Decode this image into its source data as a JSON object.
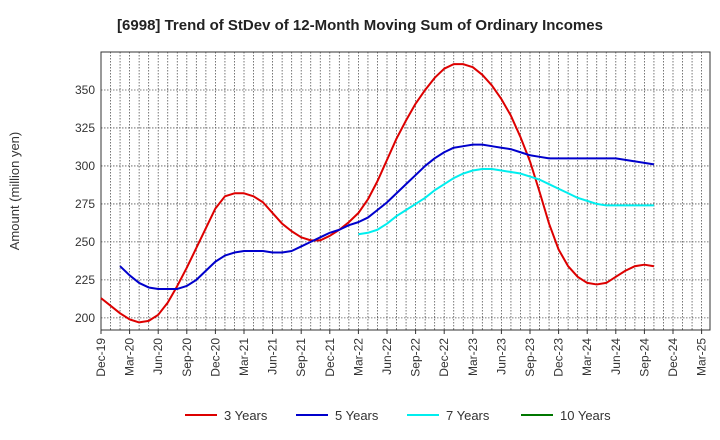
{
  "chart_data": {
    "type": "line",
    "title": "[6998]  Trend of StDev of 12-Month Moving Sum of Ordinary Incomes",
    "xlabel": "",
    "ylabel": "Amount (million yen)",
    "ylim": [
      192,
      375
    ],
    "yticks": [
      200,
      225,
      250,
      275,
      300,
      325,
      350
    ],
    "grid": true,
    "legend_position": "bottom",
    "x_tick_labels": [
      "Dec-19",
      "Mar-20",
      "Jun-20",
      "Sep-20",
      "Dec-20",
      "Mar-21",
      "Jun-21",
      "Sep-21",
      "Dec-21",
      "Mar-22",
      "Jun-22",
      "Sep-22",
      "Dec-22",
      "Mar-23",
      "Jun-23",
      "Sep-23",
      "Dec-23",
      "Mar-24",
      "Jun-24",
      "Sep-24",
      "Dec-24",
      "Mar-25"
    ],
    "series": [
      {
        "name": "3 Years",
        "color": "#dd0000",
        "start_index": 0,
        "values": [
          213,
          208,
          203,
          199,
          197,
          198,
          202,
          210,
          221,
          233,
          246,
          259,
          272,
          280,
          282,
          282,
          280,
          276,
          269,
          262,
          257,
          253,
          251,
          251,
          254,
          258,
          263,
          269,
          278,
          290,
          304,
          318,
          330,
          341,
          350,
          358,
          364,
          367,
          367,
          365,
          360,
          353,
          344,
          333,
          319,
          303,
          283,
          262,
          245,
          234,
          227,
          223,
          222,
          223,
          227,
          231,
          234,
          235,
          234
        ]
      },
      {
        "name": "5 Years",
        "color": "#0000cc",
        "start_index": 2,
        "values": [
          234,
          228,
          223,
          220,
          219,
          219,
          219,
          221,
          225,
          231,
          237,
          241,
          243,
          244,
          244,
          244,
          243,
          243,
          244,
          247,
          250,
          253,
          256,
          258,
          261,
          263,
          266,
          271,
          276,
          282,
          288,
          294,
          300,
          305,
          309,
          312,
          313,
          314,
          314,
          313,
          312,
          311,
          309,
          307,
          306,
          305,
          305,
          305,
          305,
          305,
          305,
          305,
          305,
          304,
          303,
          302,
          301
        ]
      },
      {
        "name": "7 Years",
        "color": "#00eeee",
        "start_index": 27,
        "values": [
          255,
          256,
          258,
          262,
          267,
          271,
          275,
          279,
          284,
          288,
          292,
          295,
          297,
          298,
          298,
          297,
          296,
          295,
          293,
          291,
          288,
          285,
          282,
          279,
          277,
          275,
          274,
          274,
          274,
          274,
          274,
          274
        ]
      },
      {
        "name": "10 Years",
        "color": "#007700",
        "start_index": 0,
        "values": []
      }
    ]
  }
}
